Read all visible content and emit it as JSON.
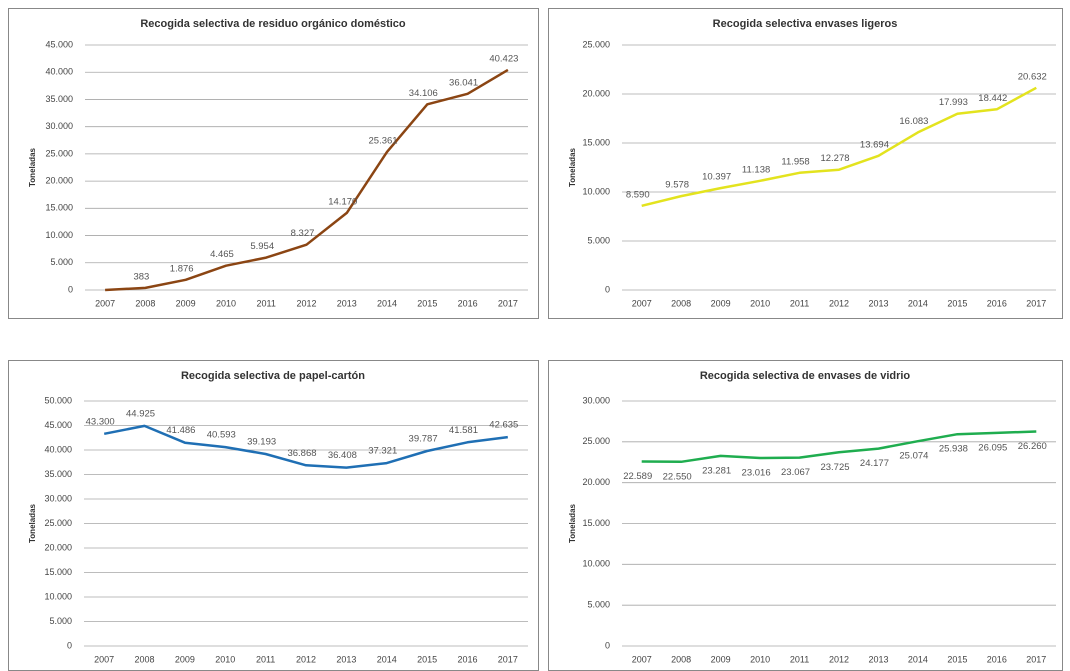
{
  "chart_data": [
    {
      "type": "line",
      "title": "Recogida selectiva de residuo orgánico doméstico",
      "y_label": "Toneladas",
      "categories": [
        "2007",
        "2008",
        "2009",
        "2010",
        "2011",
        "2012",
        "2013",
        "2014",
        "2015",
        "2016",
        "2017"
      ],
      "series": [
        {
          "color": "#8B4513",
          "values": [
            0,
            383,
            1876,
            4465,
            5954,
            8327,
            14170,
            25361,
            34106,
            36041,
            40423
          ],
          "value_labels": [
            null,
            "383",
            "1.876",
            "4.465",
            "5.954",
            "8.327",
            "14.170",
            "25.361",
            "34.106",
            "36.041",
            "40.423"
          ]
        }
      ],
      "ylim": [
        0,
        45000
      ],
      "yticks": [
        {
          "value": 0,
          "label": "0"
        },
        {
          "value": 5000,
          "label": "5.000"
        },
        {
          "value": 10000,
          "label": "10.000"
        },
        {
          "value": 15000,
          "label": "15.000"
        },
        {
          "value": 20000,
          "label": "20.000"
        },
        {
          "value": 25000,
          "label": "25.000"
        },
        {
          "value": 30000,
          "label": "30.000"
        },
        {
          "value": 35000,
          "label": "35.000"
        },
        {
          "value": 40000,
          "label": "40.000"
        },
        {
          "value": 45000,
          "label": "45.000"
        }
      ],
      "grid": true
    },
    {
      "type": "line",
      "title": "Recogida selectiva envases ligeros",
      "y_label": "Toneladas",
      "categories": [
        "2007",
        "2008",
        "2009",
        "2010",
        "2011",
        "2012",
        "2013",
        "2014",
        "2015",
        "2016",
        "2017"
      ],
      "series": [
        {
          "color": "#E3E31E",
          "values": [
            8590,
            9578,
            10397,
            11138,
            11958,
            12278,
            13694,
            16083,
            17993,
            18442,
            20632
          ],
          "value_labels": [
            "8.590",
            "9.578",
            "10.397",
            "11.138",
            "11.958",
            "12.278",
            "13.694",
            "16.083",
            "17.993",
            "18.442",
            "20.632"
          ]
        }
      ],
      "ylim": [
        0,
        25000
      ],
      "yticks": [
        {
          "value": 0,
          "label": "0"
        },
        {
          "value": 5000,
          "label": "5.000"
        },
        {
          "value": 10000,
          "label": "10.000"
        },
        {
          "value": 15000,
          "label": "15.000"
        },
        {
          "value": 20000,
          "label": "20.000"
        },
        {
          "value": 25000,
          "label": "25.000"
        }
      ],
      "grid": true
    },
    {
      "type": "line",
      "title": "Recogida selectiva de papel-cartón",
      "y_label": "Toneladas",
      "categories": [
        "2007",
        "2008",
        "2009",
        "2010",
        "2011",
        "2012",
        "2013",
        "2014",
        "2015",
        "2016",
        "2017"
      ],
      "series": [
        {
          "color": "#1F6FB4",
          "values": [
            43300,
            44925,
            41486,
            40593,
            39193,
            36868,
            36408,
            37321,
            39787,
            41581,
            42635
          ],
          "value_labels": [
            "43.300",
            "44.925",
            "41.486",
            "40.593",
            "39.193",
            "36.868",
            "36.408",
            "37.321",
            "39.787",
            "41.581",
            "42.635"
          ]
        }
      ],
      "ylim": [
        0,
        50000
      ],
      "yticks": [
        {
          "value": 0,
          "label": "0"
        },
        {
          "value": 5000,
          "label": "5.000"
        },
        {
          "value": 10000,
          "label": "10.000"
        },
        {
          "value": 15000,
          "label": "15.000"
        },
        {
          "value": 20000,
          "label": "20.000"
        },
        {
          "value": 25000,
          "label": "25.000"
        },
        {
          "value": 30000,
          "label": "30.000"
        },
        {
          "value": 35000,
          "label": "35.000"
        },
        {
          "value": 40000,
          "label": "40.000"
        },
        {
          "value": 45000,
          "label": "45.000"
        },
        {
          "value": 50000,
          "label": "50.000"
        }
      ],
      "grid": true
    },
    {
      "type": "line",
      "title": "Recogida selectiva de envases de vidrio",
      "y_label": "Toneladas",
      "categories": [
        "2007",
        "2008",
        "2009",
        "2010",
        "2011",
        "2012",
        "2013",
        "2014",
        "2015",
        "2016",
        "2017"
      ],
      "series": [
        {
          "color": "#1FAD4F",
          "values": [
            22589,
            22550,
            23281,
            23016,
            23067,
            23725,
            24177,
            25074,
            25938,
            26095,
            26260
          ],
          "value_labels": [
            "22.589",
            "22.550",
            "23.281",
            "23.016",
            "23.067",
            "23.725",
            "24.177",
            "25.074",
            "25.938",
            "26.095",
            "26.260"
          ]
        }
      ],
      "ylim": [
        0,
        30000
      ],
      "yticks": [
        {
          "value": 0,
          "label": "0"
        },
        {
          "value": 5000,
          "label": "5.000"
        },
        {
          "value": 10000,
          "label": "10.000"
        },
        {
          "value": 15000,
          "label": "15.000"
        },
        {
          "value": 20000,
          "label": "20.000"
        },
        {
          "value": 25000,
          "label": "25.000"
        },
        {
          "value": 30000,
          "label": "30.000"
        }
      ],
      "grid": true
    }
  ]
}
